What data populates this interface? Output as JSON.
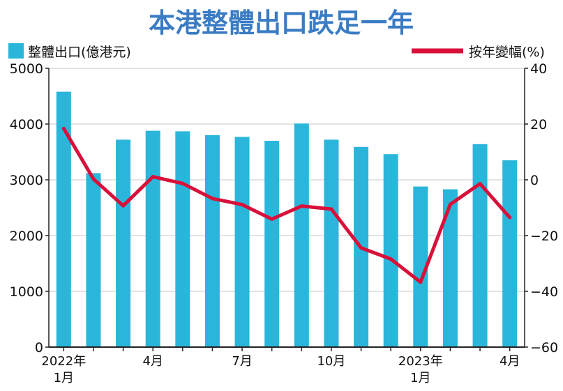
{
  "chart_data": {
    "type": "bar+line",
    "title": "本港整體出口跌足一年",
    "legend": {
      "bar_label": "整體出口(億港元)",
      "line_label": "按年變幅(%)"
    },
    "colors": {
      "bar": "#2ab6da",
      "line": "#d8103a",
      "title": "#3a7cc4",
      "grid": "#c8c8c8",
      "axis": "#222222"
    },
    "categories": [
      "2022-01",
      "2022-02",
      "2022-03",
      "2022-04",
      "2022-05",
      "2022-06",
      "2022-07",
      "2022-08",
      "2022-09",
      "2022-10",
      "2022-11",
      "2022-12",
      "2023-01",
      "2023-02",
      "2023-03",
      "2023-04"
    ],
    "series": [
      {
        "name": "整體出口(億港元)",
        "type": "bar",
        "axis": "left",
        "values": [
          4580,
          3120,
          3720,
          3880,
          3870,
          3800,
          3770,
          3700,
          4010,
          3720,
          3590,
          3460,
          2880,
          2830,
          3640,
          3350
        ]
      },
      {
        "name": "按年變幅(%)",
        "type": "line",
        "axis": "right",
        "values": [
          18.4,
          0.3,
          -9.3,
          1.1,
          -1.3,
          -6.7,
          -8.9,
          -14.1,
          -9.4,
          -10.5,
          -24.4,
          -28.4,
          -36.7,
          -8.8,
          -1.4,
          -13.5
        ]
      }
    ],
    "ylim_left": [
      0,
      5000
    ],
    "yticks_left": [
      0,
      1000,
      2000,
      3000,
      4000,
      5000
    ],
    "ylim_right": [
      -60,
      40
    ],
    "yticks_right": [
      -60,
      -40,
      -20,
      0,
      20,
      40
    ],
    "ytick_labels_right": [
      "−60",
      "−40",
      "−20",
      "0",
      "20",
      "40"
    ],
    "xtick_labels": [
      {
        "index": 0,
        "line1": "2022年",
        "line2": "1月"
      },
      {
        "index": 3,
        "line1": "4月",
        "line2": ""
      },
      {
        "index": 6,
        "line1": "7月",
        "line2": ""
      },
      {
        "index": 9,
        "line1": "10月",
        "line2": ""
      },
      {
        "index": 12,
        "line1": "2023年",
        "line2": "1月"
      },
      {
        "index": 15,
        "line1": "4月",
        "line2": ""
      }
    ],
    "grid": "horizontal"
  }
}
